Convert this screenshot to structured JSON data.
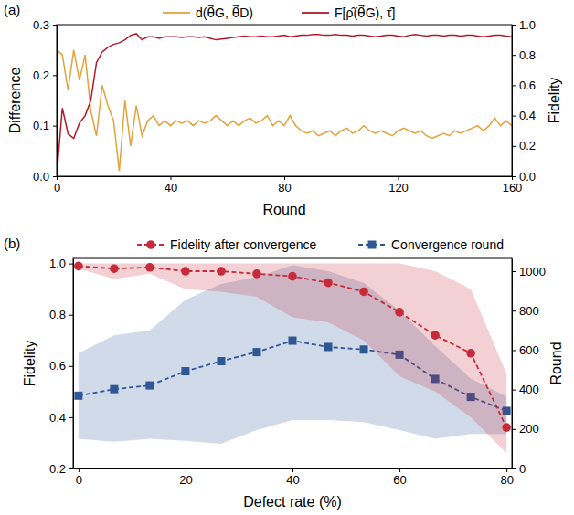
{
  "chart_data": [
    {
      "type": "line",
      "panel_label": "(a)",
      "x_label": "Round",
      "y_label": "Difference",
      "y2_label": "Fidelity",
      "legend": "top",
      "xlim": [
        0,
        160
      ],
      "xticks": [
        0,
        40,
        80,
        120,
        160
      ],
      "ylim": [
        0,
        0.3
      ],
      "yticks": [
        {
          "value": 0,
          "label": "0.0"
        },
        0.1,
        0.2,
        0.3
      ],
      "y2lim": [
        0,
        1
      ],
      "y2ticks": [
        {
          "value": 0,
          "label": "0.0"
        },
        0.2,
        0.4,
        0.6,
        0.8,
        {
          "value": 1,
          "label": "1.0"
        }
      ],
      "x": [
        0,
        2,
        4,
        6,
        8,
        10,
        12,
        14,
        16,
        18,
        20,
        22,
        24,
        26,
        28,
        30,
        32,
        34,
        36,
        38,
        40,
        42,
        44,
        46,
        48,
        50,
        52,
        54,
        56,
        58,
        60,
        62,
        64,
        66,
        68,
        70,
        72,
        74,
        76,
        78,
        80,
        82,
        84,
        86,
        88,
        90,
        92,
        94,
        96,
        98,
        100,
        102,
        104,
        106,
        108,
        110,
        112,
        114,
        116,
        118,
        120,
        122,
        124,
        126,
        128,
        130,
        132,
        134,
        136,
        138,
        140,
        142,
        144,
        146,
        148,
        150,
        152,
        154,
        156,
        158,
        160
      ],
      "series": [
        {
          "name": "d(θ⃗G, θ⃗D)",
          "color": "#e3a23b",
          "axis": "y",
          "values": [
            0.25,
            0.24,
            0.17,
            0.25,
            0.19,
            0.24,
            0.13,
            0.08,
            0.18,
            0.14,
            0.11,
            0.01,
            0.15,
            0.06,
            0.14,
            0.08,
            0.11,
            0.12,
            0.1,
            0.11,
            0.1,
            0.11,
            0.105,
            0.11,
            0.1,
            0.11,
            0.105,
            0.11,
            0.12,
            0.11,
            0.1,
            0.11,
            0.1,
            0.11,
            0.115,
            0.105,
            0.11,
            0.12,
            0.1,
            0.11,
            0.1,
            0.12,
            0.1,
            0.09,
            0.085,
            0.09,
            0.08,
            0.085,
            0.09,
            0.08,
            0.09,
            0.095,
            0.085,
            0.09,
            0.1,
            0.09,
            0.085,
            0.09,
            0.085,
            0.08,
            0.09,
            0.095,
            0.09,
            0.085,
            0.09,
            0.08,
            0.075,
            0.08,
            0.085,
            0.08,
            0.09,
            0.085,
            0.09,
            0.095,
            0.1,
            0.09,
            0.1,
            0.115,
            0.1,
            0.11,
            0.1
          ]
        },
        {
          "name": "F[ρ̂(θ⃗G), τ̂]",
          "color": "#b2182b",
          "axis": "y2",
          "values": [
            0.0,
            0.45,
            0.28,
            0.25,
            0.35,
            0.4,
            0.5,
            0.75,
            0.82,
            0.85,
            0.87,
            0.88,
            0.9,
            0.93,
            0.94,
            0.9,
            0.92,
            0.92,
            0.91,
            0.92,
            0.92,
            0.92,
            0.915,
            0.92,
            0.92,
            0.915,
            0.92,
            0.91,
            0.9,
            0.905,
            0.91,
            0.915,
            0.92,
            0.925,
            0.92,
            0.92,
            0.925,
            0.92,
            0.92,
            0.925,
            0.93,
            0.92,
            0.925,
            0.93,
            0.93,
            0.935,
            0.935,
            0.93,
            0.93,
            0.935,
            0.93,
            0.93,
            0.925,
            0.93,
            0.93,
            0.925,
            0.92,
            0.925,
            0.93,
            0.93,
            0.925,
            0.92,
            0.93,
            0.935,
            0.93,
            0.925,
            0.93,
            0.93,
            0.925,
            0.93,
            0.93,
            0.925,
            0.93,
            0.93,
            0.925,
            0.92,
            0.925,
            0.93,
            0.93,
            0.925,
            0.92
          ]
        }
      ]
    },
    {
      "type": "line",
      "panel_label": "(b)",
      "x_label": "Defect rate (%)",
      "y_label": "Fidelity",
      "y2_label": "Round",
      "legend": "top",
      "xlim": [
        -1,
        81
      ],
      "xticks": [
        0,
        20,
        40,
        60,
        80
      ],
      "ylim": [
        0.2,
        1.02
      ],
      "yticks": [
        0.2,
        0.4,
        0.6,
        0.8,
        {
          "value": 1,
          "label": "1.0"
        }
      ],
      "y2lim": [
        0,
        1065
      ],
      "y2ticks": [
        0,
        200,
        400,
        600,
        800,
        1000
      ],
      "x": [
        0,
        6.67,
        13.33,
        20,
        26.67,
        33.33,
        40,
        46.67,
        53.33,
        60,
        66.67,
        73.33,
        80
      ],
      "series": [
        {
          "name": "Fidelity after convergence",
          "color": "#c62b3a",
          "axis": "y",
          "marker": "circle",
          "line_style": "dashed",
          "values": [
            0.99,
            0.98,
            0.985,
            0.97,
            0.97,
            0.96,
            0.95,
            0.925,
            0.89,
            0.81,
            0.72,
            0.65,
            0.36
          ],
          "upper": [
            1.0,
            1.0,
            1.0,
            1.0,
            1.0,
            1.0,
            1.0,
            1.0,
            1.0,
            1.0,
            0.97,
            0.9,
            0.57
          ],
          "lower": [
            0.98,
            0.94,
            0.96,
            0.9,
            0.89,
            0.87,
            0.79,
            0.77,
            0.7,
            0.56,
            0.5,
            0.4,
            0.26
          ]
        },
        {
          "name": "Convergence round",
          "color": "#2d5895",
          "axis": "y2",
          "marker": "square",
          "line_style": "dashed",
          "values": [
            369,
            402,
            421,
            493,
            544,
            590,
            648,
            616,
            603,
            577,
            454,
            363,
            292
          ],
          "upper": [
            585,
            675,
            700,
            855,
            935,
            970,
            1030,
            1000,
            940,
            800,
            620,
            455,
            365
          ],
          "lower": [
            150,
            135,
            150,
            140,
            125,
            195,
            245,
            245,
            235,
            195,
            150,
            175,
            175
          ]
        }
      ]
    }
  ]
}
